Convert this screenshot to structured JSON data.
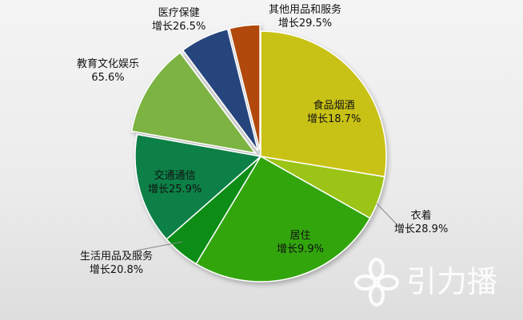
{
  "chart_data": {
    "type": "pie",
    "title": "",
    "slices": [
      {
        "category": "食品烟酒",
        "growth": "增长18.7%",
        "share": 27.6,
        "color": "#c9c214"
      },
      {
        "category": "衣着",
        "growth": "增长28.9%",
        "share": 5.6,
        "color": "#9cc414"
      },
      {
        "category": "居住",
        "growth": "增长9.9%",
        "share": 25.4,
        "color": "#31a50f"
      },
      {
        "category": "生活用品及服务",
        "growth": "增长20.8%",
        "share": 4.9,
        "color": "#0b8d16"
      },
      {
        "category": "交通通信",
        "growth": "增长25.9%",
        "share": 14.3,
        "color": "#078046"
      },
      {
        "category": "教育文化娱乐",
        "growth": "65.6%",
        "share": 12.0,
        "color": "#7cb342"
      },
      {
        "category": "医疗保健",
        "growth": "增长26.5%",
        "share": 6.3,
        "color": "#27447d"
      },
      {
        "category": "其他用品和服务",
        "growth": "增长29.5%",
        "share": 3.9,
        "color": "#b14a10"
      }
    ]
  },
  "watermark": {
    "text": "引力播"
  }
}
